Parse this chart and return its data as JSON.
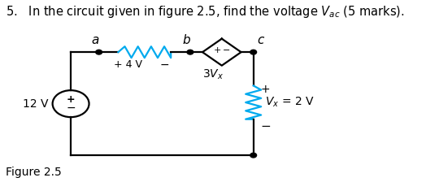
{
  "title": "5.   In the circuit given in figure 2.5, find the voltage $V_{ac}$ (5 marks).",
  "figure_label": "Figure 2.5",
  "bg_color": "#ffffff",
  "line_color": "#000000",
  "resistor_color": "#00aaee",
  "node_a_label": "a",
  "node_b_label": "b",
  "node_c_label": "c",
  "vs_label": "12 V",
  "res_label_plus": "+",
  "res_label_val": "4 V",
  "res_label_minus": "−",
  "diamond_plus": "+",
  "diamond_minus": "−",
  "diamond_label": "3$V_x$",
  "rr_plus": "+",
  "rr_minus": "−",
  "rr_label": "$V_x$ = 2 V",
  "title_fontsize": 10.5,
  "label_fontsize": 10
}
